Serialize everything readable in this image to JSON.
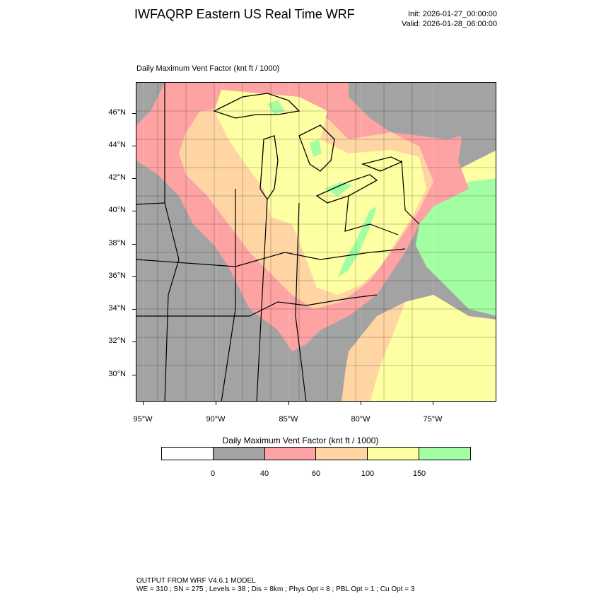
{
  "header": {
    "title": "IWFAQRP Eastern US Real Time WRF",
    "init": "Init: 2026-01-27_00:00:00",
    "valid": "Valid: 2026-01-28_06:00:00"
  },
  "plot": {
    "title": "Daily Maximum Vent Factor   (knt ft / 1000)"
  },
  "map": {
    "lat_labels": [
      "46°N",
      "44°N",
      "42°N",
      "40°N",
      "38°N",
      "36°N",
      "34°N",
      "32°N",
      "30°N"
    ],
    "lon_labels": [
      "95°W",
      "90°W",
      "85°W",
      "80°W",
      "75°W"
    ],
    "colors": {
      "no_data": "#a3a3a3",
      "c0_40": "#a3a3a3",
      "c40_60": "#fda3a3",
      "c60_100": "#fed5a3",
      "c100_150": "#fefea3",
      "c150_plus": "#a3fea3"
    }
  },
  "legend": {
    "title": "Daily Maximum Vent Factor  (knt ft / 1000)",
    "bins": [
      {
        "color": "#ffffff"
      },
      {
        "color": "#a3a3a3"
      },
      {
        "color": "#fda3a3"
      },
      {
        "color": "#fed5a3"
      },
      {
        "color": "#fefea3"
      },
      {
        "color": "#a3fea3"
      }
    ],
    "labels": [
      "0",
      "40",
      "60",
      "100",
      "150"
    ]
  },
  "footer": {
    "line1": "OUTPUT FROM WRF V4.6.1 MODEL",
    "line2": "WE = 310 ; SN = 275 ; Levels = 38 ; Dis = 8km ; Phys Opt = 8 ; PBL Opt = 1 ; Cu Opt = 3"
  }
}
